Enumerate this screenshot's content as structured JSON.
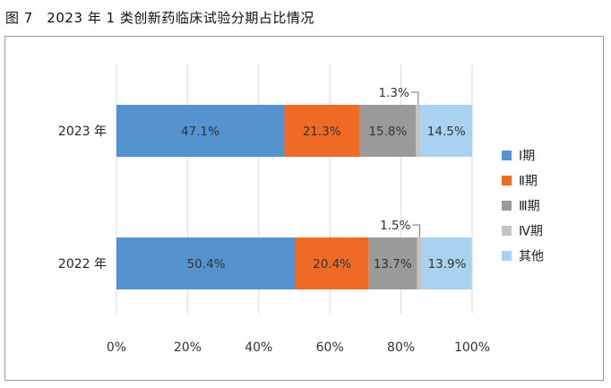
{
  "figure_title": "图 7　2023 年 1 类创新药临床试验分期占比情况",
  "chart_data": {
    "type": "bar",
    "orientation": "horizontal",
    "stacked": "percent",
    "categories": [
      "2023 年",
      "2022 年"
    ],
    "series": [
      {
        "name": "Ⅰ期",
        "color": "#5592d0",
        "values": [
          47.1,
          50.4
        ],
        "labels": [
          "47.1%",
          "50.4%"
        ],
        "label_position": "inside"
      },
      {
        "name": "Ⅱ期",
        "color": "#ef6a24",
        "values": [
          21.3,
          20.4
        ],
        "labels": [
          "21.3%",
          "20.4%"
        ],
        "label_position": "inside"
      },
      {
        "name": "Ⅲ期",
        "color": "#9a9a9a",
        "values": [
          15.8,
          13.7
        ],
        "labels": [
          "15.8%",
          "13.7%"
        ],
        "label_position": "inside"
      },
      {
        "name": "Ⅳ期",
        "color": "#c4c4c4",
        "values": [
          1.3,
          1.5
        ],
        "labels": [
          "1.3%",
          "1.5%"
        ],
        "label_position": "callout"
      },
      {
        "name": "其他",
        "color": "#a9d2f0",
        "values": [
          14.5,
          13.9
        ],
        "labels": [
          "14.5%",
          "13.9%"
        ],
        "label_position": "inside"
      }
    ],
    "xlim": [
      0,
      100
    ],
    "x_ticks": [
      "0%",
      "20%",
      "40%",
      "60%",
      "80%",
      "100%"
    ],
    "grid": "vertical",
    "legend_position": "right"
  }
}
